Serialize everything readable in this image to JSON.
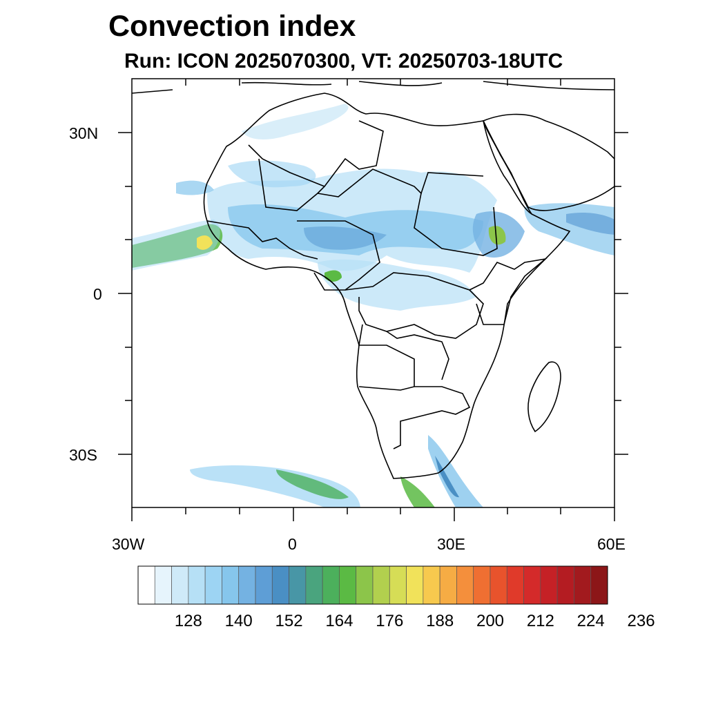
{
  "title": "Convection index",
  "subtitle": "Run: ICON 2025070300,  VT: 20250703-18UTC",
  "map": {
    "region": "Africa",
    "lon_range": [
      -30,
      60
    ],
    "lat_range": [
      -40,
      40
    ],
    "x_ticks": [
      "30W",
      "0",
      "30E",
      "60E"
    ],
    "y_ticks": [
      "30N",
      "0",
      "30S"
    ],
    "coastline_color": "#000000",
    "ocean_color": "#ffffff"
  },
  "colorbar": {
    "labels": [
      "128",
      "140",
      "152",
      "164",
      "176",
      "188",
      "200",
      "212",
      "224",
      "236"
    ],
    "colors": [
      "#ffffff",
      "#e6f4fc",
      "#cfeaf8",
      "#b6e0f6",
      "#9dd4f3",
      "#86c6ec",
      "#74b2e2",
      "#5e9ed6",
      "#4a8fc4",
      "#4896a6",
      "#4aa47e",
      "#4cb05c",
      "#5bba44",
      "#8cc54a",
      "#b2d04e",
      "#d6dd56",
      "#f1e25a",
      "#f7c94e",
      "#f6ac44",
      "#f48f3c",
      "#ef6f32",
      "#e8532c",
      "#e03a2a",
      "#d42a2a",
      "#c52126",
      "#b41c22",
      "#a21a1e",
      "#8c1618"
    ]
  }
}
